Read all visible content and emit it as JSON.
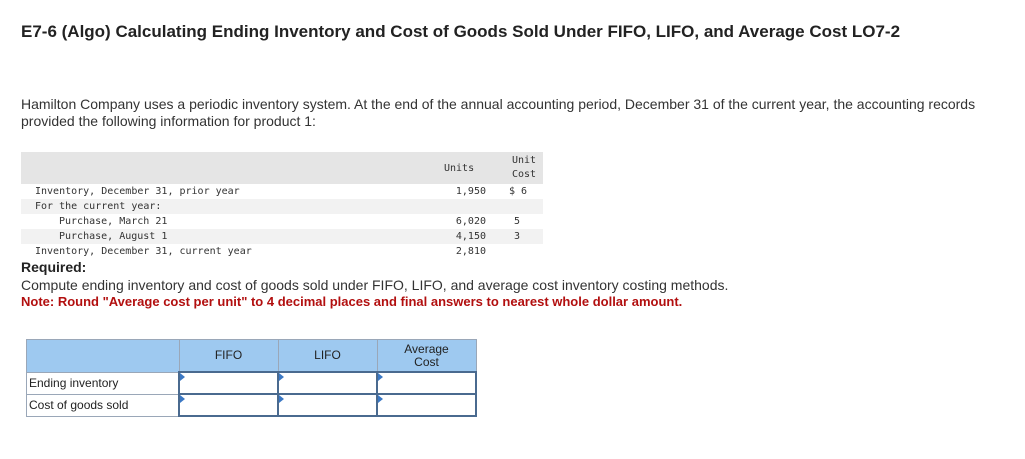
{
  "header": {
    "title": "E7-6 (Algo) Calculating Ending Inventory and Cost of Goods Sold Under FIFO, LIFO, and Average Cost LO7-2"
  },
  "intro": "Hamilton Company uses a periodic inventory system. At the end of the annual accounting period, December 31 of the current year, the accounting records provided the following information for product 1:",
  "data_table": {
    "col_units": "Units",
    "col_cost": "Unit Cost",
    "rows": [
      {
        "label": "Inventory, December 31, prior year",
        "units": "1,950",
        "cost": "$ 6"
      },
      {
        "label": "For the current year:",
        "units": "",
        "cost": ""
      },
      {
        "label": "Purchase, March 21",
        "units": "6,020",
        "cost": "5"
      },
      {
        "label": "Purchase, August 1",
        "units": "4,150",
        "cost": "3"
      },
      {
        "label": "Inventory, December 31, current year",
        "units": "2,810",
        "cost": ""
      }
    ]
  },
  "required": {
    "heading": "Required:",
    "instruction": "Compute ending inventory and cost of goods sold under FIFO, LIFO, and average cost inventory costing methods.",
    "note": "Note: Round \"Average cost per unit\" to 4 decimal places and final answers to nearest whole dollar amount."
  },
  "answer_table": {
    "columns": [
      "FIFO",
      "LIFO",
      "Average Cost"
    ],
    "rows": [
      "Ending inventory",
      "Cost of goods sold"
    ]
  }
}
